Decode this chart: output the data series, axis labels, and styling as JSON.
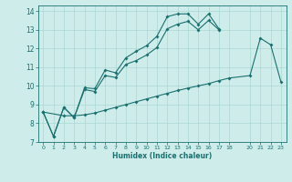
{
  "title": "",
  "xlabel": "Humidex (Indice chaleur)",
  "bg_color": "#ceecea",
  "grid_color": "#a8d8d4",
  "line_color": "#1a7070",
  "xlim": [
    -0.5,
    23.5
  ],
  "ylim": [
    7,
    14.3
  ],
  "xticks": [
    0,
    1,
    2,
    3,
    4,
    5,
    6,
    7,
    8,
    9,
    10,
    11,
    12,
    13,
    14,
    15,
    16,
    17,
    18,
    20,
    21,
    22,
    23
  ],
  "yticks": [
    7,
    8,
    9,
    10,
    11,
    12,
    13,
    14
  ],
  "line1_x": [
    0,
    1,
    2,
    3,
    4,
    5,
    6,
    7,
    8,
    9,
    10,
    11,
    12,
    13,
    14,
    15,
    16,
    17
  ],
  "line1_y": [
    8.6,
    7.3,
    8.85,
    8.3,
    9.9,
    9.85,
    10.85,
    10.7,
    11.5,
    11.85,
    12.15,
    12.65,
    13.7,
    13.85,
    13.85,
    13.3,
    13.85,
    13.05
  ],
  "line2_x": [
    0,
    1,
    2,
    3,
    4,
    5,
    6,
    7,
    8,
    9,
    10,
    11,
    12,
    13,
    14,
    15,
    16,
    17
  ],
  "line2_y": [
    8.6,
    7.3,
    8.85,
    8.3,
    9.8,
    9.7,
    10.55,
    10.45,
    11.15,
    11.35,
    11.65,
    12.05,
    13.05,
    13.3,
    13.45,
    13.0,
    13.5,
    13.0
  ],
  "line3_x": [
    0,
    2,
    3,
    4,
    5,
    6,
    7,
    8,
    9,
    10,
    11,
    12,
    13,
    14,
    15,
    16,
    17,
    18,
    20,
    21,
    22,
    23
  ],
  "line3_y": [
    8.6,
    8.4,
    8.4,
    8.45,
    8.55,
    8.7,
    8.85,
    9.0,
    9.15,
    9.3,
    9.45,
    9.6,
    9.75,
    9.88,
    10.0,
    10.12,
    10.28,
    10.42,
    10.55,
    12.55,
    12.2,
    10.2
  ]
}
